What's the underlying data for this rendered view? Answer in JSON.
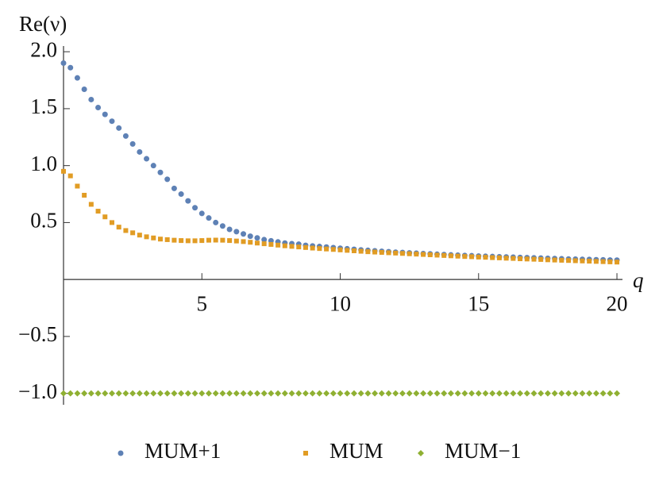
{
  "chart_data": {
    "type": "scatter",
    "y_label": "Re(ν)",
    "x_label": "q",
    "x": [
      0,
      0.25,
      0.5,
      0.75,
      1,
      1.25,
      1.5,
      1.75,
      2,
      2.25,
      2.5,
      2.75,
      3,
      3.25,
      3.5,
      3.75,
      4,
      4.25,
      4.5,
      4.75,
      5,
      5.25,
      5.5,
      5.75,
      6,
      6.25,
      6.5,
      6.75,
      7,
      7.25,
      7.5,
      7.75,
      8,
      8.25,
      8.5,
      8.75,
      9,
      9.25,
      9.5,
      9.75,
      10,
      10.25,
      10.5,
      10.75,
      11,
      11.25,
      11.5,
      11.75,
      12,
      12.25,
      12.5,
      12.75,
      13,
      13.25,
      13.5,
      13.75,
      14,
      14.25,
      14.5,
      14.75,
      15,
      15.25,
      15.5,
      15.75,
      16,
      16.25,
      16.5,
      16.75,
      17,
      17.25,
      17.5,
      17.75,
      18,
      18.25,
      18.5,
      18.75,
      19,
      19.25,
      19.5,
      19.75,
      20
    ],
    "series": [
      {
        "name": "MUM+1",
        "color": "#5e81b5",
        "marker": "circle",
        "values": [
          1.9,
          1.86,
          1.77,
          1.67,
          1.58,
          1.51,
          1.45,
          1.39,
          1.33,
          1.26,
          1.19,
          1.12,
          1.06,
          1.0,
          0.94,
          0.88,
          0.8,
          0.75,
          0.69,
          0.63,
          0.58,
          0.54,
          0.5,
          0.47,
          0.44,
          0.42,
          0.4,
          0.38,
          0.365,
          0.35,
          0.34,
          0.33,
          0.32,
          0.315,
          0.31,
          0.3,
          0.295,
          0.29,
          0.285,
          0.28,
          0.275,
          0.27,
          0.265,
          0.26,
          0.256,
          0.252,
          0.248,
          0.244,
          0.24,
          0.237,
          0.234,
          0.231,
          0.228,
          0.225,
          0.222,
          0.219,
          0.216,
          0.214,
          0.211,
          0.209,
          0.206,
          0.204,
          0.202,
          0.2,
          0.198,
          0.196,
          0.194,
          0.192,
          0.19,
          0.188,
          0.186,
          0.184,
          0.182,
          0.18,
          0.179,
          0.177,
          0.176,
          0.174,
          0.173,
          0.171,
          0.17
        ]
      },
      {
        "name": "MUM",
        "color": "#e19c24",
        "marker": "square",
        "values": [
          0.95,
          0.91,
          0.82,
          0.74,
          0.66,
          0.6,
          0.55,
          0.5,
          0.46,
          0.43,
          0.41,
          0.39,
          0.375,
          0.365,
          0.355,
          0.35,
          0.345,
          0.342,
          0.34,
          0.34,
          0.342,
          0.345,
          0.346,
          0.345,
          0.342,
          0.338,
          0.333,
          0.327,
          0.32,
          0.314,
          0.308,
          0.302,
          0.296,
          0.291,
          0.286,
          0.281,
          0.276,
          0.272,
          0.268,
          0.264,
          0.26,
          0.256,
          0.252,
          0.248,
          0.244,
          0.241,
          0.238,
          0.235,
          0.232,
          0.229,
          0.226,
          0.223,
          0.22,
          0.217,
          0.214,
          0.211,
          0.208,
          0.205,
          0.202,
          0.2,
          0.197,
          0.195,
          0.192,
          0.19,
          0.187,
          0.185,
          0.182,
          0.18,
          0.178,
          0.176,
          0.173,
          0.171,
          0.169,
          0.167,
          0.165,
          0.163,
          0.161,
          0.159,
          0.157,
          0.155,
          0.153
        ]
      },
      {
        "name": "MUM−1",
        "color": "#8fb032",
        "marker": "diamond",
        "values": [
          -1,
          -1,
          -1,
          -1,
          -1,
          -1,
          -1,
          -1,
          -1,
          -1,
          -1,
          -1,
          -1,
          -1,
          -1,
          -1,
          -1,
          -1,
          -1,
          -1,
          -1,
          -1,
          -1,
          -1,
          -1,
          -1,
          -1,
          -1,
          -1,
          -1,
          -1,
          -1,
          -1,
          -1,
          -1,
          -1,
          -1,
          -1,
          -1,
          -1,
          -1,
          -1,
          -1,
          -1,
          -1,
          -1,
          -1,
          -1,
          -1,
          -1,
          -1,
          -1,
          -1,
          -1,
          -1,
          -1,
          -1,
          -1,
          -1,
          -1,
          -1,
          -1,
          -1,
          -1,
          -1,
          -1,
          -1,
          -1,
          -1,
          -1,
          -1,
          -1,
          -1,
          -1,
          -1,
          -1,
          -1,
          -1,
          -1,
          -1,
          -1
        ]
      }
    ],
    "xlim": [
      0,
      20.2
    ],
    "ylim": [
      -1.1,
      2.05
    ],
    "xticks": [
      5,
      10,
      15,
      20
    ],
    "yticks": [
      {
        "value": 2.0,
        "label": "2.0"
      },
      {
        "value": 1.5,
        "label": "1.5"
      },
      {
        "value": 1.0,
        "label": "1.0"
      },
      {
        "value": 0.5,
        "label": "0.5"
      },
      {
        "value": -0.5,
        "label": "−0.5"
      },
      {
        "value": -1.0,
        "label": "−1.0"
      }
    ],
    "legend": "bottom"
  }
}
